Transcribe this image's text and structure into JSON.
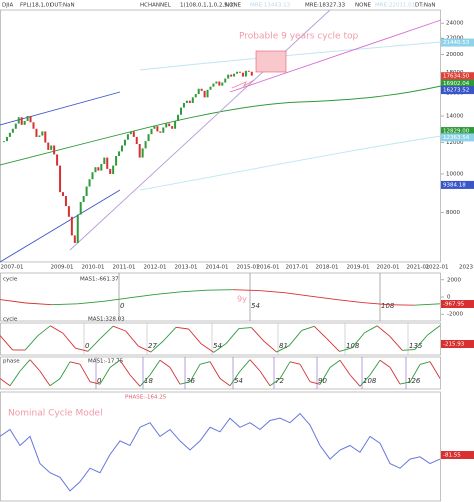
{
  "header": {
    "symbol": "DJIA",
    "fpl": "FPL(18,1,0)",
    "out": "OUT:NaN",
    "channel": "HCHANNEL",
    "channel_params": "1(108,0,1,1,0,2,5,1)",
    "none1": "NONE",
    "mre1": "MRE:13443.13",
    "mre2": "MRE:18327.33",
    "none2": "NONE",
    "mre3": "MRE:22011.01",
    "dt": "DT:NaN"
  },
  "price_panel": {
    "log": true,
    "ylim": [
      6000,
      25900
    ],
    "yticks": [
      24000,
      22000,
      20000,
      18000,
      16000,
      14000,
      12000,
      10000,
      8000
    ],
    "x_labels": [
      "2007-01",
      "2009-01",
      "2010-01",
      "2011-01",
      "2012-01",
      "2013-01",
      "2014-01",
      "2015-01",
      "2016-01",
      "2017-01",
      "2018-01",
      "2019-01",
      "2020-01",
      "2021-01",
      "2022-01",
      "2023"
    ],
    "closes": [
      12100,
      12400,
      12700,
      13000,
      13400,
      13900,
      13300,
      13600,
      14000,
      13500,
      13000,
      12400,
      12500,
      12800,
      12000,
      11500,
      11800,
      11200,
      10500,
      9000,
      8800,
      8300,
      7800,
      7000,
      6700,
      7900,
      8500,
      8800,
      9300,
      9700,
      10100,
      10400,
      10200,
      10600,
      11000,
      10300,
      10000,
      10500,
      11100,
      11400,
      11800,
      12200,
      12600,
      12800,
      12400,
      11900,
      11000,
      11600,
      12100,
      12600,
      13000,
      13200,
      12800,
      12700,
      13100,
      13400,
      13200,
      13000,
      13600,
      14100,
      14700,
      15100,
      15300,
      15100,
      15600,
      15900,
      16400,
      16200,
      15600,
      16300,
      16600,
      16900,
      17100,
      16700,
      17000,
      17400,
      17800,
      17600,
      17900,
      18100,
      18000,
      17600,
      18200,
      18100,
      17700
    ],
    "levels": [
      {
        "value": 21440.53,
        "color": "#8fd3ea"
      },
      {
        "value": 17634.5,
        "label": "17634.50",
        "color": "#e0403a"
      },
      {
        "value": 16902.04,
        "color": "#2e9a3a"
      },
      {
        "value": 16273.52,
        "color": "#3a55c8"
      },
      {
        "value": 12829,
        "label": "12829.00",
        "color": "#2e9a3a"
      },
      {
        "value": 12363.54,
        "color": "#8fd3ea"
      },
      {
        "value": 9384.18,
        "color": "#3a55c8"
      }
    ],
    "annotation": "Probable 9 years cycle top"
  },
  "cycle_panel": {
    "title": "cycle",
    "mas": "MAS1:-661.37",
    "ylim": [
      -2800,
      2800
    ],
    "yticks": [
      2000,
      0,
      -2000
    ],
    "values": [
      -300,
      -700,
      -900,
      -800,
      -500,
      -100,
      300,
      600,
      800,
      850,
      750,
      500,
      100,
      -300,
      -650,
      -900,
      -950,
      -800
    ],
    "markers": [
      "0",
      "54",
      "108"
    ],
    "annotation": "9y",
    "level": "-967.95"
  },
  "cycle2_panel": {
    "title": "cycle",
    "mas": "MAS1:328.03",
    "ylim": [
      -1.2,
      1.2
    ],
    "values": [
      0.26,
      -0.82,
      -0.83,
      0.24,
      0.99,
      0.44,
      -0.69,
      -0.92,
      0.05,
      0.96,
      0.6,
      -0.53,
      -0.98,
      -0.14,
      0.88,
      0.75,
      -0.36,
      -1.0,
      -0.33,
      0.78,
      0.86,
      -0.17,
      -0.98,
      -0.5,
      0.64,
      0.95,
      0.02,
      -0.93,
      -0.66,
      0.47,
      0.99,
      0.21,
      -0.85,
      -0.79,
      0.29,
      1.0
    ],
    "markers": [
      "0",
      "27",
      "54",
      "81",
      "108",
      "135"
    ],
    "level": "-215.93"
  },
  "phase_panel": {
    "title": "phase",
    "mas": "MAS1:-17.75",
    "ylim": [
      -1.2,
      1.2
    ],
    "values": [
      -0.41,
      -0.96,
      0.14,
      1.0,
      0.14,
      -0.96,
      -0.42,
      0.84,
      0.66,
      -0.65,
      -0.84,
      0.41,
      0.96,
      -0.14,
      -1.0,
      -0.15,
      0.96,
      0.42,
      -0.84,
      -0.66,
      0.65,
      0.85,
      -0.41,
      -0.96,
      0.13,
      1.0,
      0.15,
      -0.96,
      -0.42,
      0.84,
      0.66,
      -0.65,
      -0.85,
      0.41,
      0.96,
      -0.13,
      -1.0,
      -0.15,
      0.96,
      0.43,
      -0.83,
      -0.67,
      0.64,
      0.85,
      -0.4
    ],
    "markers": [
      "0",
      "18",
      "36",
      "54",
      "72",
      "90",
      "108",
      "126"
    ]
  },
  "nominal_panel": {
    "header": "PHASE:-164.25",
    "title": "Nominal Cycle Model",
    "ylim": [
      -1.1,
      1.1
    ],
    "values": [
      0.3,
      0.45,
      0.1,
      0.3,
      -0.3,
      -0.5,
      -0.6,
      -0.9,
      -0.7,
      -0.4,
      -0.5,
      -0.1,
      0.2,
      0.1,
      0.5,
      0.6,
      0.3,
      0.45,
      0.2,
      0.0,
      0.2,
      0.5,
      0.4,
      0.7,
      0.5,
      0.6,
      0.45,
      0.65,
      0.7,
      0.6,
      0.8,
      0.55,
      0.1,
      -0.2,
      0.0,
      0.1,
      -0.05,
      0.3,
      0.15,
      -0.3,
      -0.4,
      -0.2,
      -0.15,
      -0.3,
      -0.2
    ],
    "level": "-81.55"
  }
}
